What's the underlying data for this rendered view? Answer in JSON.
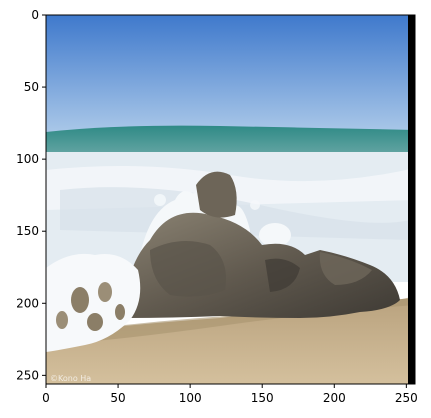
{
  "image_axes": {
    "x_range": [
      0,
      256
    ],
    "y_range": [
      0,
      256
    ],
    "y_inverted": true,
    "x_ticks": [
      0,
      50,
      100,
      150,
      200,
      250
    ],
    "y_ticks": [
      0,
      50,
      100,
      150,
      200,
      250
    ]
  },
  "watermark_text": "©Kono Ha",
  "colors": {
    "sky_top": "#3f79cc",
    "sky_bottom": "#a9c7e8",
    "wave_band": "#2f8a86",
    "foam": "#eef3f7",
    "rock_dark": "#4a463f",
    "rock_light": "#8a8272",
    "sand": "#c9b491",
    "right_border": "#000000"
  }
}
